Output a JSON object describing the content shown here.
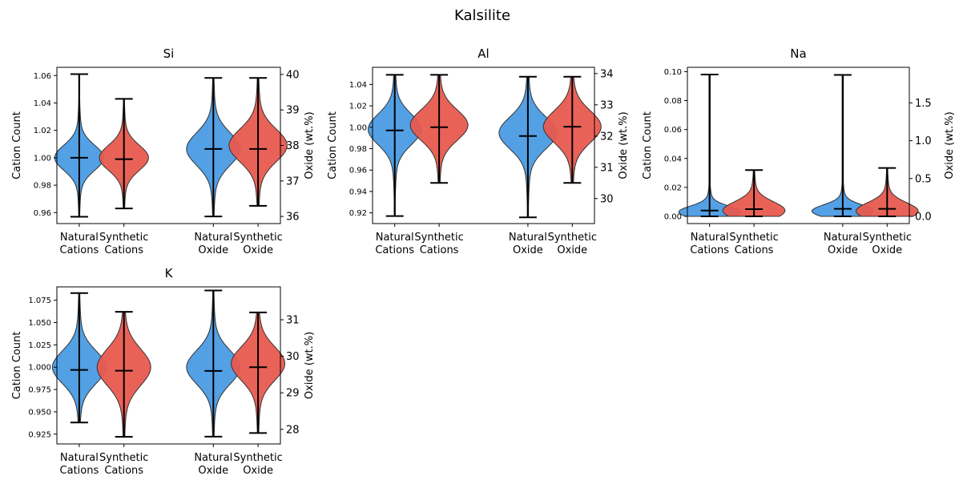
{
  "figure": {
    "title": "Kalsilite"
  },
  "colors": {
    "natural": "#4a9be4",
    "synthetic": "#e85a4f",
    "edge": "#333333",
    "line": "#000000"
  },
  "chart_data": [
    {
      "type": "violin",
      "title": "Si",
      "ylabel": "Cation Count",
      "ylabel_right": "Oxide (wt.%)",
      "categories": [
        "Natural\nCations",
        "Synthetic\nCations",
        "Natural\nOxide",
        "Synthetic\nOxide"
      ],
      "ylim": [
        0.952,
        1.066
      ],
      "yticks": [
        0.96,
        0.98,
        1.0,
        1.02,
        1.04,
        1.06
      ],
      "ytick_labels": [
        "0.96",
        "0.98",
        "1.00",
        "1.02",
        "1.04",
        "1.06"
      ],
      "ylim_right": [
        35.8,
        40.2
      ],
      "yticks_right": [
        36,
        37,
        38,
        39,
        40
      ],
      "ytick_labels_right": [
        "36",
        "37",
        "38",
        "39",
        "40"
      ],
      "series": [
        {
          "axis": "left",
          "color": "natural",
          "min": 0.957,
          "max": 1.061,
          "median": 1.0,
          "mode": 1.0,
          "spread": 0.009,
          "halfwidth": 0.11
        },
        {
          "axis": "left",
          "color": "synthetic",
          "min": 0.963,
          "max": 1.043,
          "median": 0.999,
          "mode": 1.0,
          "spread": 0.009,
          "halfwidth": 0.11
        },
        {
          "axis": "right",
          "color": "natural",
          "min": 36.0,
          "max": 39.9,
          "median": 37.9,
          "mode": 37.9,
          "spread": 0.45,
          "halfwidth": 0.12
        },
        {
          "axis": "right",
          "color": "synthetic",
          "min": 36.3,
          "max": 39.9,
          "median": 37.9,
          "mode": 38.0,
          "spread": 0.45,
          "halfwidth": 0.13
        }
      ]
    },
    {
      "type": "violin",
      "title": "Al",
      "ylabel": "Cation Count",
      "ylabel_right": "Oxide (wt.%)",
      "categories": [
        "Natural\nCations",
        "Synthetic\nCations",
        "Natural\nOxide",
        "Synthetic\nOxide"
      ],
      "ylim": [
        0.91,
        1.056
      ],
      "yticks": [
        0.92,
        0.94,
        0.96,
        0.98,
        1.0,
        1.02,
        1.04
      ],
      "ytick_labels": [
        "0.92",
        "0.94",
        "0.96",
        "0.98",
        "1.00",
        "1.02",
        "1.04"
      ],
      "ylim_right": [
        29.2,
        34.2
      ],
      "yticks_right": [
        30,
        31,
        32,
        33,
        34
      ],
      "ytick_labels_right": [
        "30",
        "31",
        "32",
        "33",
        "34"
      ],
      "series": [
        {
          "axis": "left",
          "color": "natural",
          "min": 0.917,
          "max": 1.049,
          "median": 0.997,
          "mode": 0.998,
          "spread": 0.014,
          "halfwidth": 0.12
        },
        {
          "axis": "left",
          "color": "synthetic",
          "min": 0.948,
          "max": 1.049,
          "median": 1.0,
          "mode": 1.002,
          "spread": 0.014,
          "halfwidth": 0.13
        },
        {
          "axis": "right",
          "color": "natural",
          "min": 29.4,
          "max": 33.9,
          "median": 32.0,
          "mode": 32.1,
          "spread": 0.5,
          "halfwidth": 0.13
        },
        {
          "axis": "right",
          "color": "synthetic",
          "min": 30.5,
          "max": 33.9,
          "median": 32.3,
          "mode": 32.3,
          "spread": 0.5,
          "halfwidth": 0.13
        }
      ]
    },
    {
      "type": "violin",
      "title": "Na",
      "ylabel": "Cation Count",
      "ylabel_right": "Oxide (wt.%)",
      "categories": [
        "Natural\nCations",
        "Synthetic\nCations",
        "Natural\nOxide",
        "Synthetic\nOxide"
      ],
      "ylim": [
        -0.005,
        0.103
      ],
      "yticks": [
        0.0,
        0.02,
        0.04,
        0.06,
        0.08,
        0.1
      ],
      "ytick_labels": [
        "0.00",
        "0.02",
        "0.04",
        "0.06",
        "0.08",
        "0.10"
      ],
      "ylim_right": [
        -0.095,
        1.97
      ],
      "yticks_right": [
        0.0,
        0.5,
        1.0,
        1.5
      ],
      "ytick_labels_right": [
        "0.0",
        "0.5",
        "1.0",
        "1.5"
      ],
      "series": [
        {
          "axis": "left",
          "color": "natural",
          "min": 0.0,
          "max": 0.098,
          "median": 0.004,
          "mode": 0.003,
          "spread": 0.004,
          "halfwidth": 0.14
        },
        {
          "axis": "left",
          "color": "synthetic",
          "min": 0.0,
          "max": 0.032,
          "median": 0.005,
          "mode": 0.004,
          "spread": 0.006,
          "halfwidth": 0.14
        },
        {
          "axis": "right",
          "color": "natural",
          "min": 0.0,
          "max": 1.87,
          "median": 0.1,
          "mode": 0.07,
          "spread": 0.08,
          "halfwidth": 0.14
        },
        {
          "axis": "right",
          "color": "synthetic",
          "min": 0.0,
          "max": 0.64,
          "median": 0.1,
          "mode": 0.07,
          "spread": 0.11,
          "halfwidth": 0.14
        }
      ]
    },
    {
      "type": "violin",
      "title": "K",
      "ylabel": "Cation Count",
      "ylabel_right": "Oxide (wt.%)",
      "categories": [
        "Natural\nCations",
        "Synthetic\nCations",
        "Natural\nOxide",
        "Synthetic\nOxide"
      ],
      "ylim": [
        0.914,
        1.09
      ],
      "yticks": [
        0.925,
        0.95,
        0.975,
        1.0,
        1.025,
        1.05,
        1.075
      ],
      "ytick_labels": [
        "0.925",
        "0.950",
        "0.975",
        "1.000",
        "1.025",
        "1.050",
        "1.075"
      ],
      "ylim_right": [
        27.6,
        31.9
      ],
      "yticks_right": [
        28,
        29,
        30,
        31
      ],
      "ytick_labels_right": [
        "28",
        "29",
        "30",
        "31"
      ],
      "series": [
        {
          "axis": "left",
          "color": "natural",
          "min": 0.938,
          "max": 1.083,
          "median": 0.997,
          "mode": 1.0,
          "spread": 0.018,
          "halfwidth": 0.12
        },
        {
          "axis": "left",
          "color": "synthetic",
          "min": 0.922,
          "max": 1.062,
          "median": 0.996,
          "mode": 1.0,
          "spread": 0.02,
          "halfwidth": 0.12
        },
        {
          "axis": "right",
          "color": "natural",
          "min": 27.8,
          "max": 31.8,
          "median": 29.6,
          "mode": 29.7,
          "spread": 0.45,
          "halfwidth": 0.12
        },
        {
          "axis": "right",
          "color": "synthetic",
          "min": 27.9,
          "max": 31.2,
          "median": 29.7,
          "mode": 29.8,
          "spread": 0.45,
          "halfwidth": 0.12
        }
      ]
    }
  ]
}
